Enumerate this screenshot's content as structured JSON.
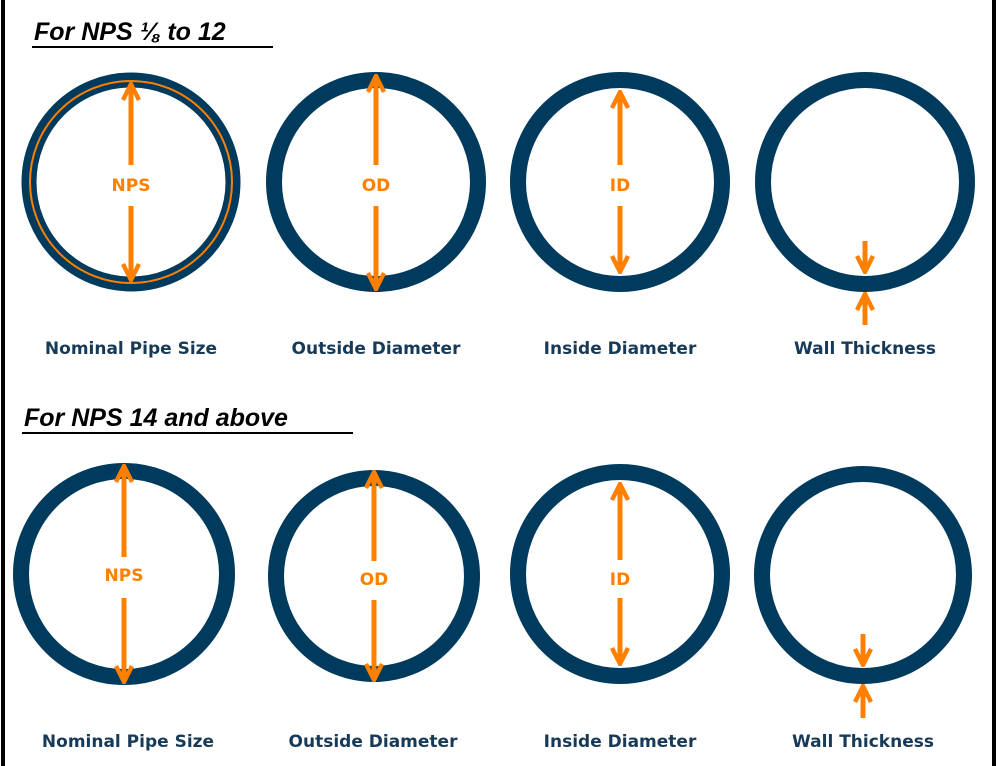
{
  "colors": {
    "pipe": "#003a5c",
    "dimension": "#ff8000",
    "label": "#163a57"
  },
  "sections": [
    {
      "title": "For NPS ⅛ to 12",
      "items": [
        {
          "inner_label": "NPS",
          "caption": "Nominal Pipe Size"
        },
        {
          "inner_label": "OD",
          "caption": "Outside Diameter"
        },
        {
          "inner_label": "ID",
          "caption": "Inside Diameter"
        },
        {
          "inner_label": "",
          "caption": "Wall Thickness"
        }
      ]
    },
    {
      "title": "For NPS 14 and above",
      "items": [
        {
          "inner_label": "NPS",
          "caption": "Nominal Pipe Size"
        },
        {
          "inner_label": "OD",
          "caption": "Outside Diameter"
        },
        {
          "inner_label": "ID",
          "caption": "Inside Diameter"
        },
        {
          "inner_label": "",
          "caption": "Wall Thickness"
        }
      ]
    }
  ]
}
